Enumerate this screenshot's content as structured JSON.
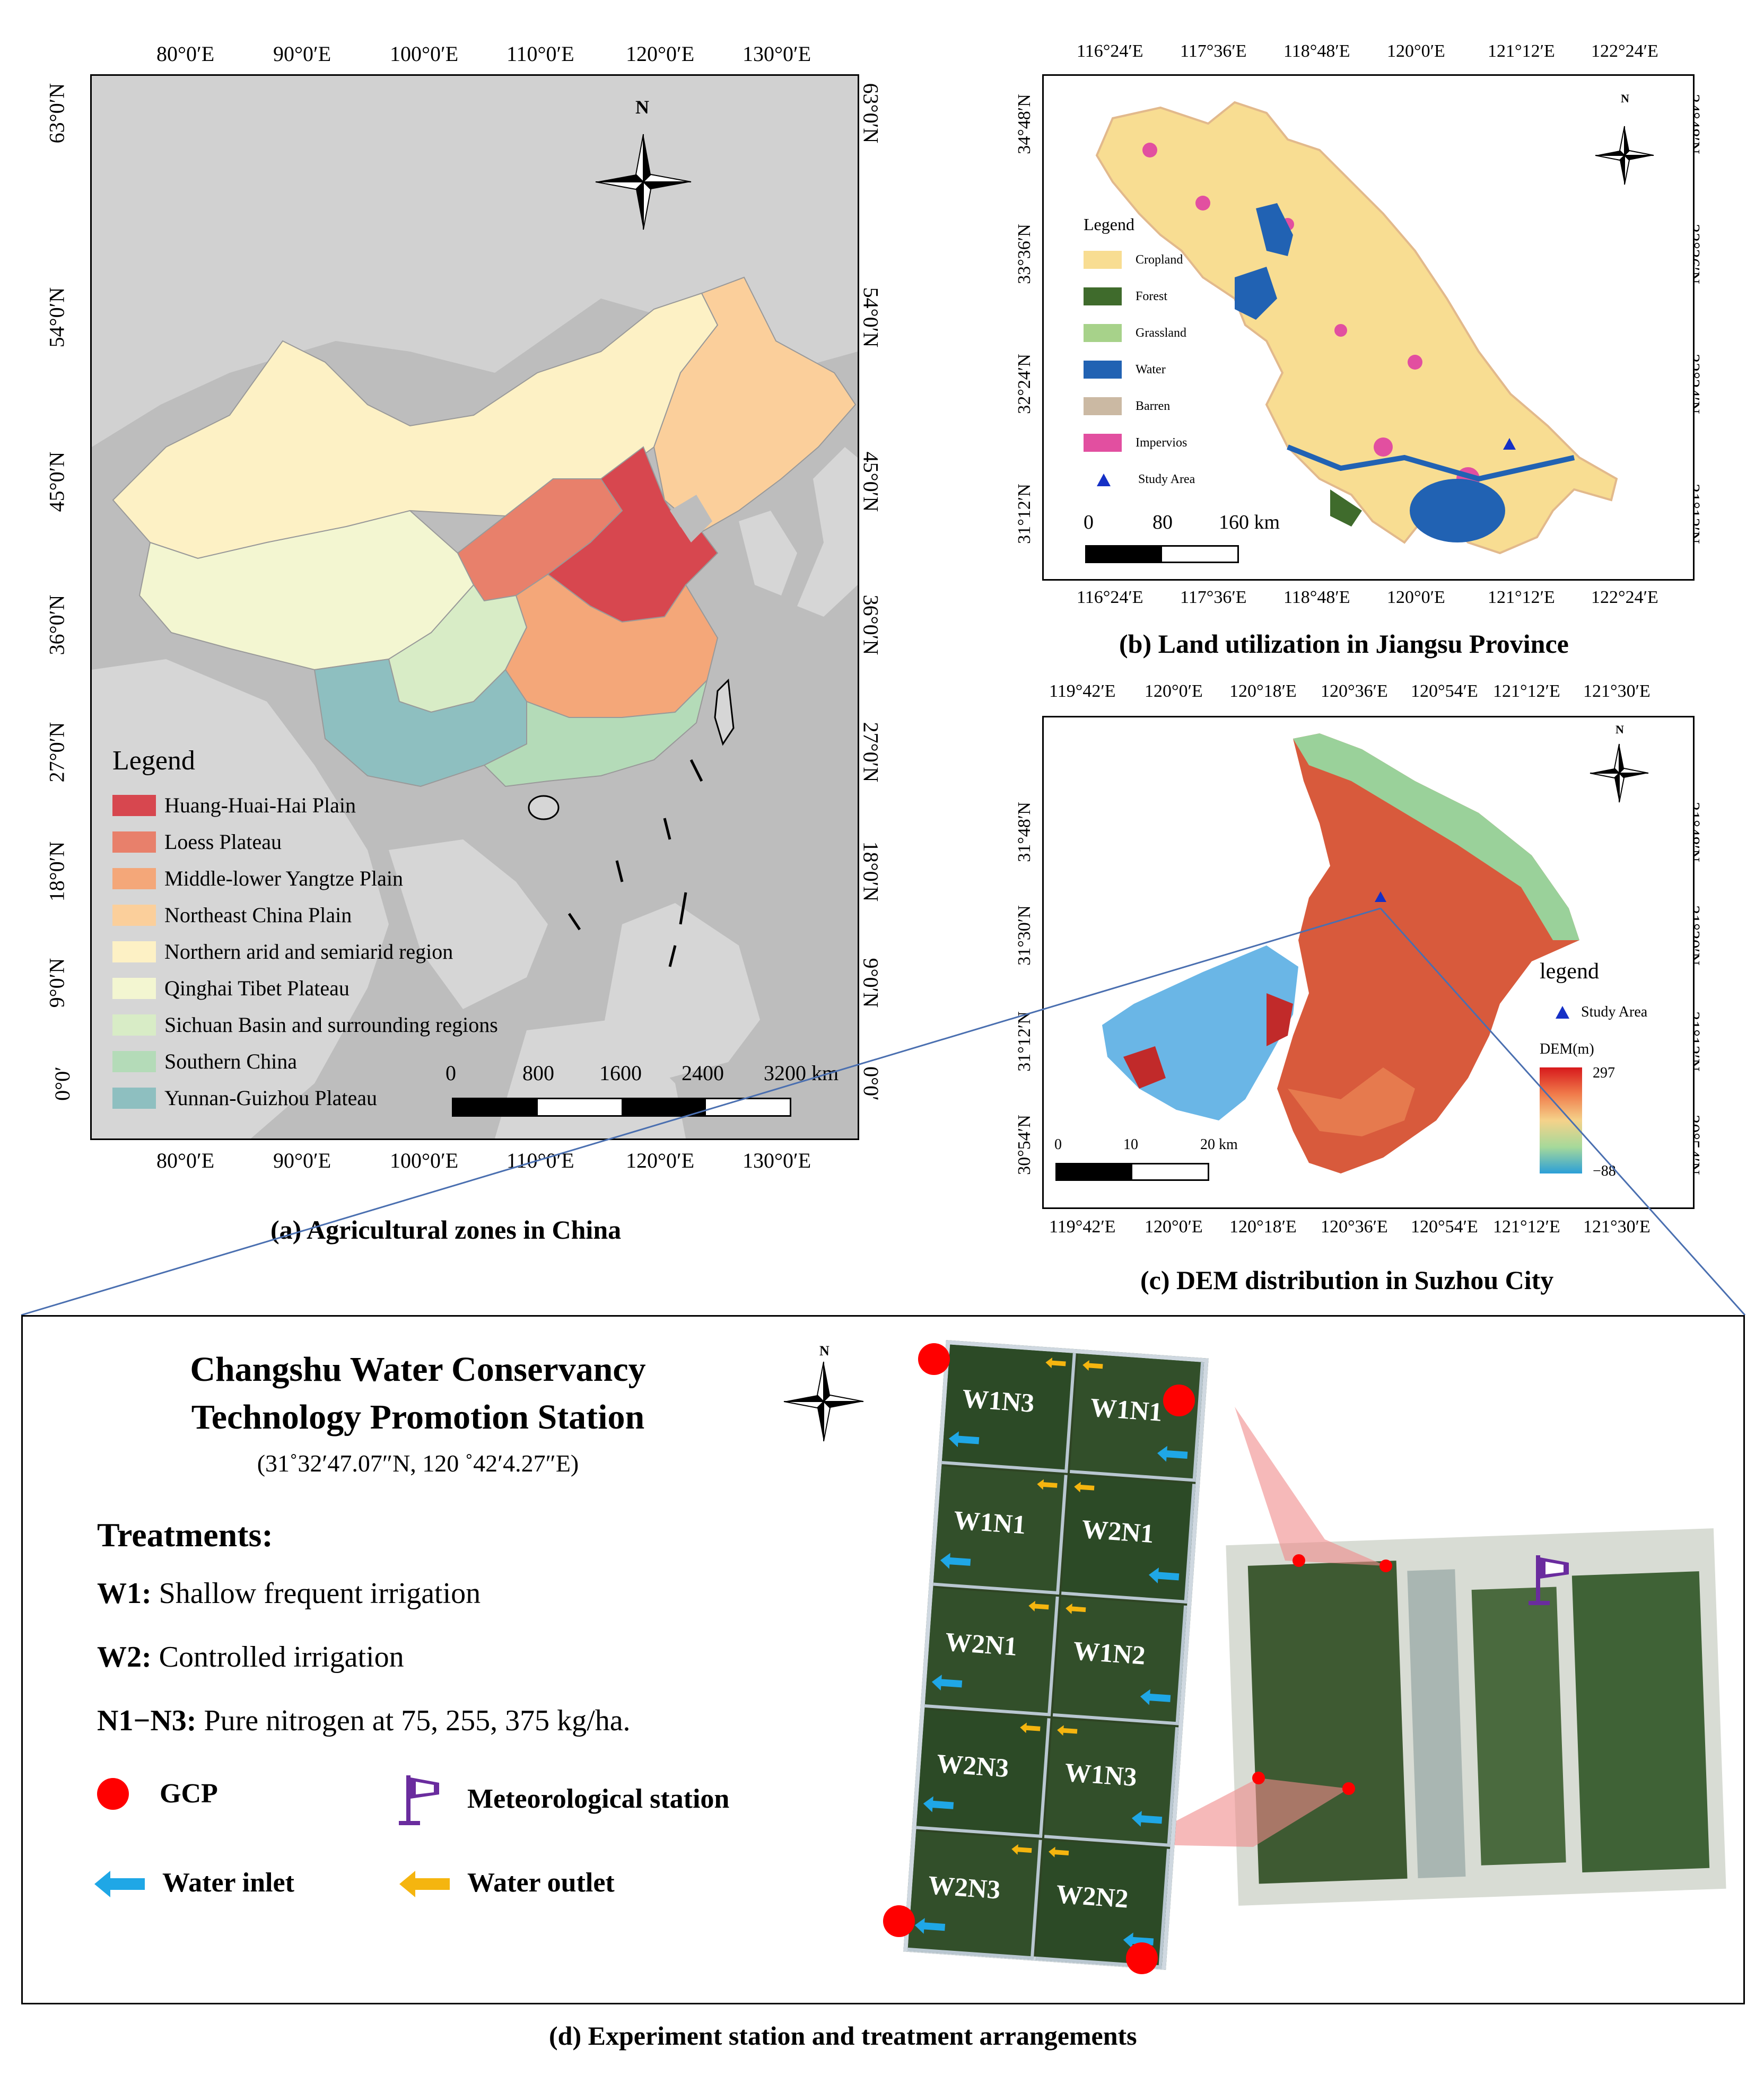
{
  "panel_a": {
    "caption": "(a) Agricultural zones in China",
    "top_ticks": [
      "80°0′E",
      "90°0′E",
      "100°0′E",
      "110°0′E",
      "120°0′E",
      "130°0′E"
    ],
    "side_ticks": [
      "63°0′N",
      "54°0′N",
      "45°0′N",
      "36°0′N",
      "27°0′N",
      "18°0′N",
      "9°0′N",
      "0°0′"
    ],
    "north": "N",
    "legend_title": "Legend",
    "legend": [
      {
        "label": "Huang-Huai-Hai Plain",
        "color": "#d7474f"
      },
      {
        "label": "Loess Plateau",
        "color": "#e8806b"
      },
      {
        "label": "Middle-lower Yangtze Plain",
        "color": "#f4a779"
      },
      {
        "label": "Northeast China Plain",
        "color": "#fbcf9b"
      },
      {
        "label": "Northern arid and semiarid region",
        "color": "#fdf1c5"
      },
      {
        "label": "Qinghai Tibet Plateau",
        "color": "#f3f6d1"
      },
      {
        "label": "Sichuan Basin and surrounding regions",
        "color": "#d8ecc6"
      },
      {
        "label": "Southern China",
        "color": "#b4dbb8"
      },
      {
        "label": "Yunnan-Guizhou Plateau",
        "color": "#8ebfc0"
      }
    ],
    "scale_labels": [
      "0",
      "800",
      "1600",
      "2400",
      "3200 km"
    ]
  },
  "panel_b": {
    "caption": "(b) Land utilization  in Jiangsu Province",
    "ticks": [
      "116°24′E",
      "117°36′E",
      "118°48′E",
      "120°0′E",
      "121°12′E",
      "122°24′E"
    ],
    "side_ticks": [
      "34°48′N",
      "33°36′N",
      "32°24′N",
      "31°12′N"
    ],
    "north": "N",
    "legend_title": "Legend",
    "legend": [
      {
        "label": "Cropland",
        "color": "#f8dd92"
      },
      {
        "label": "Forest",
        "color": "#3f6b2c"
      },
      {
        "label": "Grassland",
        "color": "#a7d28a"
      },
      {
        "label": "Water",
        "color": "#2162b3"
      },
      {
        "label": "Barren",
        "color": "#cbb9a3"
      },
      {
        "label": "Impervios",
        "color": "#e24fa0"
      }
    ],
    "study_area": "Study Area",
    "scale_labels": [
      "0",
      "80",
      "160 km"
    ]
  },
  "panel_c": {
    "caption": "(c) DEM distribution  in Suzhou City",
    "ticks": [
      "119°42′E",
      "120°0′E",
      "120°18′E",
      "120°36′E",
      "120°54′E",
      "121°12′E",
      "121°30′E"
    ],
    "side_ticks": [
      "31°48′N",
      "31°30′N",
      "31°12′N",
      "30°54′N"
    ],
    "north": "N",
    "legend_title": "legend",
    "study_area": "Study Area",
    "dem_title": "DEM(m)",
    "dem_max": "297",
    "dem_min": "−88",
    "scale_labels": [
      "0",
      "10",
      "20 km"
    ]
  },
  "panel_d": {
    "caption": "(d) Experiment station and treatment arrangements",
    "station_line1": "Changshu Water Conservancy",
    "station_line2": "Technology Promotion Station",
    "coords": "(31˚32′47.07″N,  120 ˚42′4.27″E)",
    "north": "N",
    "treatments_title": "Treatments:",
    "treatments": [
      {
        "key": "W1:",
        "text": " Shallow frequent irrigation"
      },
      {
        "key": "W2:",
        "text": " Controlled irrigation"
      },
      {
        "key": "N1−N3:",
        "text": " Pure nitrogen at 75, 255, 375 kg/ha."
      }
    ],
    "symbols": {
      "gcp": "GCP",
      "met": "Meteorological station",
      "inlet": "Water inlet",
      "outlet": "Water outlet"
    },
    "plots": [
      "W1N3",
      "W1N1",
      "W1N1",
      "W2N1",
      "W2N1",
      "W1N2",
      "W2N3",
      "W1N3",
      "W2N3",
      "W2N2"
    ]
  }
}
